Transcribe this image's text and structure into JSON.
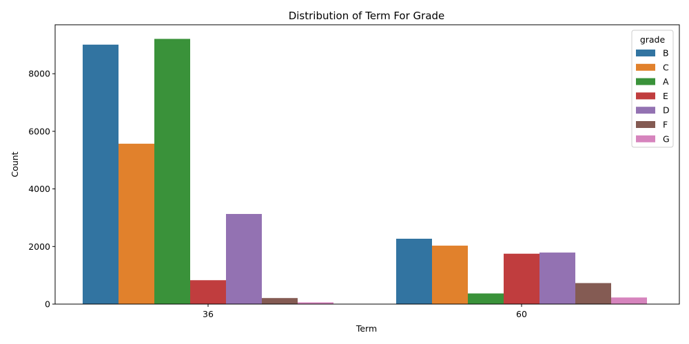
{
  "chart_data": {
    "type": "bar",
    "title": "Distribution of Term For Grade",
    "xlabel": "Term",
    "ylabel": "Count",
    "categories": [
      "36",
      "60"
    ],
    "ylim": [
      0,
      9700
    ],
    "yticks": [
      0,
      2000,
      4000,
      6000,
      8000
    ],
    "grid": false,
    "legend": {
      "title": "grade",
      "placement": "top-right"
    },
    "series": [
      {
        "name": "B",
        "color": "#3274a1",
        "values": [
          9010,
          2270
        ]
      },
      {
        "name": "C",
        "color": "#e1812c",
        "values": [
          5570,
          2030
        ]
      },
      {
        "name": "A",
        "color": "#3a923a",
        "values": [
          9210,
          370
        ]
      },
      {
        "name": "E",
        "color": "#c03d3e",
        "values": [
          830,
          1750
        ]
      },
      {
        "name": "D",
        "color": "#9372b2",
        "values": [
          3130,
          1790
        ]
      },
      {
        "name": "F",
        "color": "#845b53",
        "values": [
          210,
          730
        ]
      },
      {
        "name": "G",
        "color": "#d684bd",
        "values": [
          60,
          230
        ]
      }
    ]
  }
}
